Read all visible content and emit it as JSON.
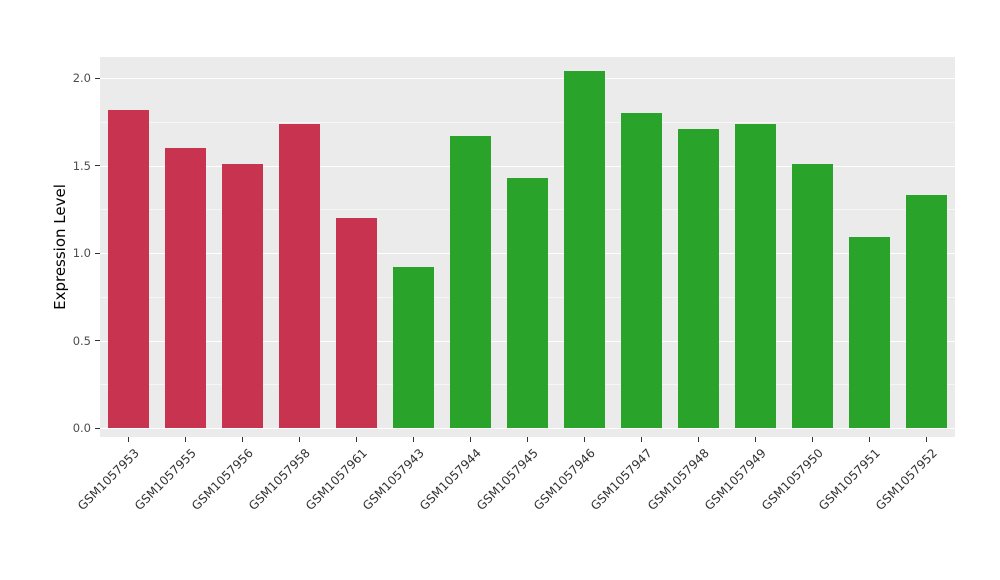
{
  "figure": {
    "background": "#FFFFFF",
    "panel_background": "#EBEBEB",
    "grid_color": "#FFFFFF",
    "tick_color": "#333333",
    "ytick_text_color": "#4D4D4D",
    "xtick_text_color": "#333333"
  },
  "chart_data": {
    "type": "bar",
    "title": "",
    "xlabel": "",
    "ylabel": "Expression Level",
    "legend": "none",
    "grid": true,
    "categories": [
      "GSM1057953",
      "GSM1057955",
      "GSM1057956",
      "GSM1057958",
      "GSM1057961",
      "GSM1057943",
      "GSM1057944",
      "GSM1057945",
      "GSM1057946",
      "GSM1057947",
      "GSM1057948",
      "GSM1057949",
      "GSM1057950",
      "GSM1057951",
      "GSM1057952"
    ],
    "values": [
      1.82,
      1.6,
      1.51,
      1.74,
      1.2,
      0.92,
      1.67,
      1.43,
      2.04,
      1.8,
      1.71,
      1.74,
      1.51,
      1.09,
      1.33
    ],
    "bar_colors": [
      "#C8334F",
      "#C8334F",
      "#C8334F",
      "#C8334F",
      "#C8334F",
      "#29A329",
      "#29A329",
      "#29A329",
      "#29A329",
      "#29A329",
      "#29A329",
      "#29A329",
      "#29A329",
      "#29A329",
      "#29A329"
    ],
    "group_colors": {
      "red_group": "#C8334F",
      "green_group": "#29A329"
    },
    "ylim": [
      -0.05,
      2.12
    ],
    "yticks": [
      0.0,
      0.5,
      1.0,
      1.5,
      2.0
    ],
    "ytick_labels": [
      "0.0",
      "0.5",
      "1.0",
      "1.5",
      "2.0"
    ],
    "minor_ticks": [
      0.25,
      0.75,
      1.25,
      1.75
    ]
  }
}
